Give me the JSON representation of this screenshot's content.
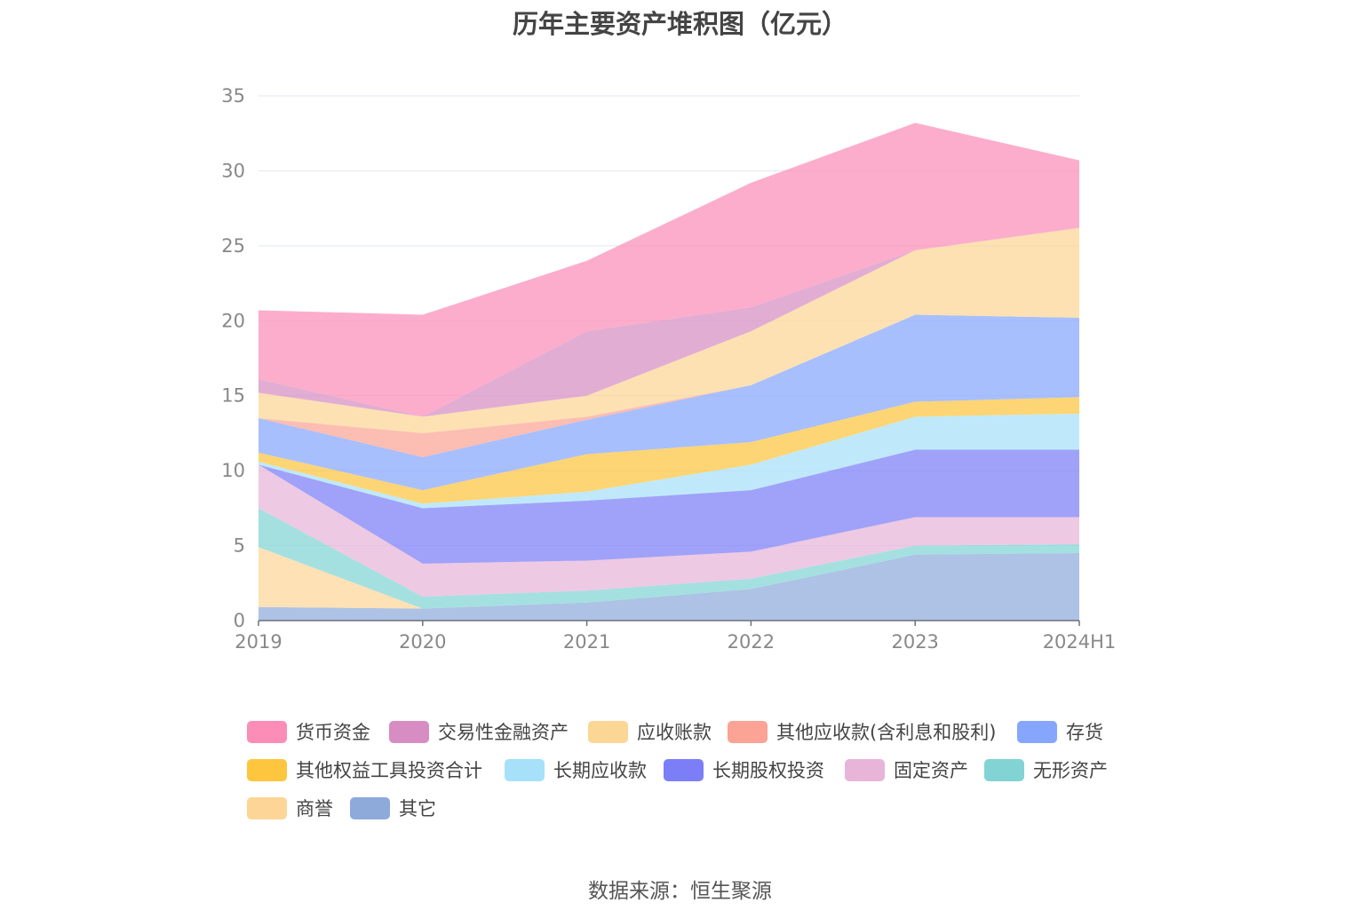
{
  "chart_data": {
    "type": "area",
    "stacked": true,
    "title": "历年主要资产堆积图（亿元）",
    "x": [
      "2019",
      "2020",
      "2021",
      "2022",
      "2023",
      "2024H1"
    ],
    "ylim": [
      0,
      35
    ],
    "yticks": [
      0,
      5,
      10,
      15,
      20,
      25,
      30,
      35
    ],
    "grid": true,
    "legend_position": "bottom",
    "series": [
      {
        "name": "其它",
        "color": "#8eaadb",
        "values": [
          0.9,
          0.8,
          1.2,
          2.1,
          4.4,
          4.5
        ]
      },
      {
        "name": "商誉",
        "color": "#fdd597",
        "values": [
          4.0,
          0.0,
          0.0,
          0.0,
          0.0,
          0.0
        ]
      },
      {
        "name": "无形资产",
        "color": "#82d4d4",
        "values": [
          2.6,
          0.8,
          0.8,
          0.7,
          0.6,
          0.6
        ]
      },
      {
        "name": "固定资产",
        "color": "#e8b4d8",
        "values": [
          2.9,
          2.2,
          2.0,
          1.8,
          1.9,
          1.8
        ]
      },
      {
        "name": "长期股权投资",
        "color": "#7b7ef6",
        "values": [
          0.0,
          3.7,
          4.0,
          4.1,
          4.5,
          4.5
        ]
      },
      {
        "name": "长期应收款",
        "color": "#a6e0f9",
        "values": [
          0.2,
          0.3,
          0.6,
          1.7,
          2.2,
          2.4
        ]
      },
      {
        "name": "其他权益工具投资合计",
        "color": "#fec53e",
        "values": [
          0.6,
          0.9,
          2.5,
          1.5,
          1.0,
          1.1
        ]
      },
      {
        "name": "存货",
        "color": "#86a6fd",
        "values": [
          2.3,
          2.2,
          2.3,
          3.8,
          5.8,
          5.3
        ]
      },
      {
        "name": "其他应收款(含利息和股利)",
        "color": "#fba394",
        "values": [
          0.0,
          1.6,
          0.2,
          0.0,
          0.0,
          0.0
        ]
      },
      {
        "name": "应收账款",
        "color": "#fcd695",
        "values": [
          1.7,
          1.1,
          1.4,
          3.6,
          4.3,
          6.0
        ]
      },
      {
        "name": "交易性金融资产",
        "color": "#d78dc2",
        "values": [
          0.9,
          0.0,
          4.3,
          1.6,
          0.0,
          0.0
        ]
      },
      {
        "name": "货币资金",
        "color": "#fb8db7",
        "values": [
          4.6,
          6.8,
          4.7,
          8.3,
          8.5,
          4.5
        ]
      }
    ]
  },
  "legend": {
    "items": [
      {
        "label": "货币资金",
        "color": "#fb8db7"
      },
      {
        "label": "交易性金融资产",
        "color": "#d78dc2"
      },
      {
        "label": "应收账款",
        "color": "#fcd695"
      },
      {
        "label": "其他应收款(含利息和股利)",
        "color": "#fba394"
      },
      {
        "label": "存货",
        "color": "#86a6fd"
      },
      {
        "label": "其他权益工具投资合计",
        "color": "#fec53e"
      },
      {
        "label": "长期应收款",
        "color": "#a6e0f9"
      },
      {
        "label": "长期股权投资",
        "color": "#7b7ef6"
      },
      {
        "label": "固定资产",
        "color": "#e8b4d8"
      },
      {
        "label": "无形资产",
        "color": "#82d4d4"
      },
      {
        "label": "商誉",
        "color": "#fdd597"
      },
      {
        "label": "其它",
        "color": "#8eaadb"
      }
    ]
  },
  "source": "数据来源：恒生聚源"
}
